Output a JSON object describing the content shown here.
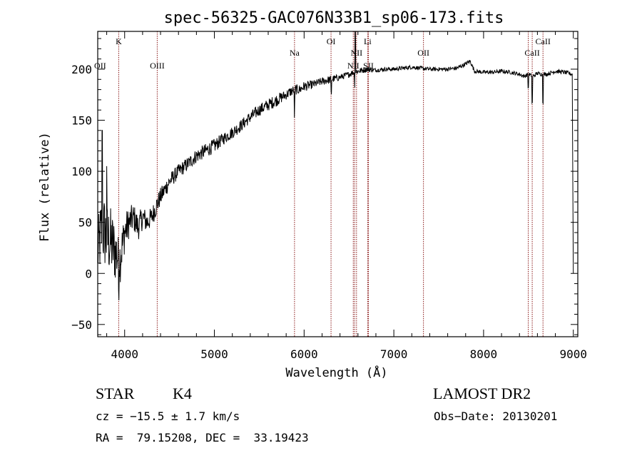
{
  "chart_data": {
    "type": "line",
    "title": "spec-56325-GAC076N33B1_sp06-173.fits",
    "xlabel": "Wavelength (Å)",
    "ylabel": "Flux (relative)",
    "xlim": [
      3700,
      9050
    ],
    "ylim": [
      -62,
      237
    ],
    "grid": false,
    "legend": "none",
    "x_ticks": [
      4000,
      5000,
      6000,
      7000,
      8000,
      9000
    ],
    "x_tick_labels": [
      "4000",
      "5000",
      "6000",
      "7000",
      "8000",
      "9000"
    ],
    "y_ticks": [
      -50,
      0,
      50,
      100,
      150,
      200
    ],
    "y_tick_labels": [
      "−50",
      "0",
      "50",
      "100",
      "150",
      "200"
    ],
    "series": [
      {
        "color": "#000000",
        "x": [
          3700,
          3750,
          3800,
          3850,
          3900,
          3950,
          4000,
          4050,
          4100,
          4150,
          4200,
          4250,
          4300,
          4350,
          4400,
          4500,
          4600,
          4700,
          4800,
          4900,
          5000,
          5100,
          5200,
          5300,
          5400,
          5500,
          5600,
          5700,
          5800,
          5850,
          5900,
          5950,
          6000,
          6100,
          6200,
          6300,
          6400,
          6500,
          6550,
          6600,
          6700,
          6800,
          6900,
          7000,
          7100,
          7200,
          7300,
          7400,
          7500,
          7600,
          7700,
          7800,
          7850,
          7900,
          8000,
          8100,
          8200,
          8300,
          8400,
          8450,
          8500,
          8550,
          8600,
          8650,
          8700,
          8800,
          8900,
          8950,
          8990,
          9000
        ],
        "y": [
          20,
          45,
          35,
          30,
          20,
          15,
          40,
          50,
          55,
          45,
          55,
          50,
          55,
          65,
          75,
          90,
          100,
          107,
          115,
          120,
          125,
          132,
          138,
          145,
          153,
          160,
          165,
          170,
          175,
          178,
          180,
          180,
          183,
          185,
          188,
          190,
          192,
          195,
          197,
          198,
          200,
          199,
          200,
          200,
          201,
          202,
          201,
          200,
          200,
          200,
          201,
          205,
          208,
          198,
          197,
          197,
          198,
          197,
          195,
          193,
          195,
          193,
          196,
          195,
          195,
          198,
          197,
          196,
          195,
          0
        ],
        "noise_amplitude": [
          30,
          40,
          35,
          35,
          30,
          25,
          20,
          15,
          14,
          13,
          12,
          11,
          10,
          10,
          9,
          8,
          7,
          7,
          7,
          7,
          7,
          6,
          6,
          6,
          6,
          6,
          6,
          6,
          5,
          5,
          5,
          5,
          5,
          4,
          4,
          4,
          3,
          3,
          3,
          3,
          3,
          2,
          2,
          2,
          2,
          2,
          2,
          2,
          2,
          2,
          2,
          2,
          2,
          2,
          2,
          2,
          2,
          2,
          2,
          2,
          2,
          2,
          2,
          2,
          2,
          2,
          2,
          2,
          2,
          0
        ],
        "absorption_features": [
          {
            "x": 3933,
            "depth": 35
          },
          {
            "x": 5893,
            "depth": 30
          },
          {
            "x": 6302,
            "depth": 20
          },
          {
            "x": 6563,
            "depth": 15
          },
          {
            "x": 8498,
            "depth": 20
          },
          {
            "x": 8542,
            "depth": 40
          },
          {
            "x": 8662,
            "depth": 40
          }
        ],
        "spikes": [
          {
            "x": 3750,
            "value": 140
          },
          {
            "x": 3800,
            "value": 105
          },
          {
            "x": 6570,
            "value": 238
          }
        ]
      }
    ],
    "annotations": [
      {
        "text": "K",
        "x": 3934,
        "row": "top"
      },
      {
        "text": "OII",
        "x": 3727,
        "row": "low"
      },
      {
        "text": "OIII",
        "x": 4363,
        "row": "low"
      },
      {
        "text": "Na",
        "x": 5893,
        "row": "mid"
      },
      {
        "text": "OI",
        "x": 6300,
        "row": "top"
      },
      {
        "text": "NII",
        "x": 6548,
        "row": "low2"
      },
      {
        "text": "NII",
        "x": 6584,
        "row": "mid"
      },
      {
        "text": "Li",
        "x": 6708,
        "row": "top"
      },
      {
        "text": "SII",
        "x": 6717,
        "row": "low2"
      },
      {
        "text": "OII",
        "x": 7330,
        "row": "mid"
      },
      {
        "text": "CaII",
        "x": 8542,
        "row": "mid"
      },
      {
        "text": "CaII",
        "x": 8662,
        "row": "top"
      }
    ],
    "line_markers": [
      3934,
      4363,
      5893,
      6300,
      6548,
      6563,
      6584,
      6708,
      6717,
      7330,
      8498,
      8542,
      8662
    ]
  },
  "footer": {
    "object_class": "STAR",
    "subclass": "K4",
    "survey": "LAMOST DR2",
    "redshift": "cz = −15.5 ± 1.7 km/s",
    "obs_date": "Obs−Date: 20130201",
    "coords": "RA =  79.15208, DEC =  33.19423"
  },
  "colors": {
    "spectrum": "#000000",
    "line_marker": "#8b1a1a",
    "axes": "#000000",
    "background": "#ffffff"
  }
}
